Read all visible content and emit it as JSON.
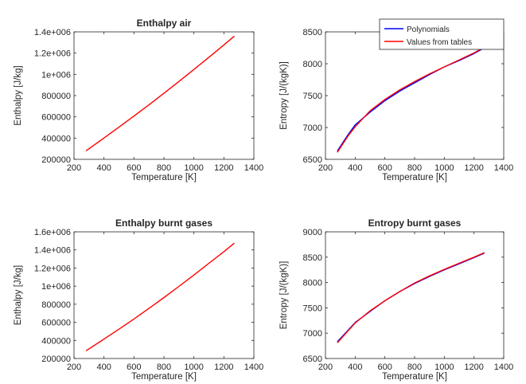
{
  "colors": {
    "polynomials": "#0000ff",
    "tables": "#ff0000",
    "axes": "#262626",
    "background": "#ffffff"
  },
  "legend": {
    "entries": [
      "Polynomials",
      "Values from tables"
    ],
    "placement": "top-right"
  },
  "chart_data": [
    {
      "type": "line",
      "title": "Enthalpy air",
      "xlabel": "Temperature [K]",
      "ylabel": "Enthalpy [J/kg]",
      "xlim": [
        200,
        1400
      ],
      "ylim": [
        200000,
        1400000
      ],
      "xticks": [
        "200",
        "400",
        "600",
        "800",
        "1000",
        "1200",
        "1400"
      ],
      "yticks": [
        "200000",
        "400000",
        "600000",
        "800000",
        "1e+006",
        "1.2e+006",
        "1.4e+006"
      ],
      "grid": false,
      "series": [
        {
          "name": "Values from tables",
          "color": "#ff0000",
          "x": [
            280,
            400,
            500,
            600,
            700,
            800,
            900,
            1000,
            1100,
            1200,
            1270
          ],
          "y": [
            280000,
            401000,
            503000,
            607000,
            713000,
            822000,
            933000,
            1046000,
            1161000,
            1277000,
            1360000
          ]
        }
      ]
    },
    {
      "type": "line",
      "title": "Entropy air",
      "xlabel": "Temperature [K]",
      "ylabel": "Entropy [J/(kgK)]",
      "xlim": [
        200,
        1400
      ],
      "ylim": [
        6500,
        8500
      ],
      "xticks": [
        "200",
        "400",
        "600",
        "800",
        "1000",
        "1200",
        "1400"
      ],
      "yticks": [
        "6500",
        "7000",
        "7500",
        "8000",
        "8500"
      ],
      "grid": false,
      "series": [
        {
          "name": "Polynomials",
          "color": "#0000ff",
          "x": [
            280,
            350,
            400,
            500,
            600,
            700,
            800,
            900,
            1000,
            1100,
            1200,
            1270
          ],
          "y": [
            6630,
            6880,
            7040,
            7240,
            7420,
            7570,
            7700,
            7830,
            7950,
            8050,
            8160,
            8250
          ]
        },
        {
          "name": "Values from tables",
          "color": "#ff0000",
          "x": [
            280,
            350,
            400,
            500,
            600,
            700,
            800,
            900,
            1000,
            1100,
            1200,
            1270
          ],
          "y": [
            6610,
            6860,
            7010,
            7260,
            7440,
            7590,
            7720,
            7840,
            7950,
            8060,
            8170,
            8260
          ]
        }
      ]
    },
    {
      "type": "line",
      "title": "Enthalpy burnt gases",
      "xlabel": "Temperature [K]",
      "ylabel": "Enthalpy [J/kg]",
      "xlim": [
        200,
        1400
      ],
      "ylim": [
        200000,
        1600000
      ],
      "xticks": [
        "200",
        "400",
        "600",
        "800",
        "1000",
        "1200",
        "1400"
      ],
      "yticks": [
        "200000",
        "400000",
        "600000",
        "800000",
        "1e+006",
        "1.2e+006",
        "1.4e+006",
        "1.6e+006"
      ],
      "grid": false,
      "series": [
        {
          "name": "Values from tables",
          "color": "#ff0000",
          "x": [
            280,
            400,
            500,
            600,
            700,
            800,
            900,
            1000,
            1100,
            1200,
            1270
          ],
          "y": [
            285000,
            415000,
            524000,
            637000,
            754000,
            874000,
            997000,
            1123000,
            1252000,
            1381000,
            1475000
          ]
        }
      ]
    },
    {
      "type": "line",
      "title": "Entropy burnt gases",
      "xlabel": "Temperature [K]",
      "ylabel": "Entropy [J/(kgK)]",
      "xlim": [
        200,
        1400
      ],
      "ylim": [
        6500,
        9000
      ],
      "xticks": [
        "200",
        "400",
        "600",
        "800",
        "1000",
        "1200",
        "1400"
      ],
      "yticks": [
        "6500",
        "7000",
        "7500",
        "8000",
        "8500",
        "9000"
      ],
      "grid": false,
      "series": [
        {
          "name": "Polynomials",
          "color": "#0000ff",
          "x": [
            280,
            350,
            400,
            500,
            600,
            700,
            800,
            900,
            1000,
            1100,
            1200,
            1270
          ],
          "y": [
            6830,
            7050,
            7210,
            7430,
            7640,
            7820,
            7980,
            8120,
            8250,
            8370,
            8490,
            8580
          ]
        },
        {
          "name": "Values from tables",
          "color": "#ff0000",
          "x": [
            280,
            350,
            400,
            500,
            600,
            700,
            800,
            900,
            1000,
            1100,
            1200,
            1270
          ],
          "y": [
            6810,
            7040,
            7200,
            7440,
            7640,
            7820,
            7990,
            8130,
            8260,
            8380,
            8500,
            8590
          ]
        }
      ]
    }
  ]
}
